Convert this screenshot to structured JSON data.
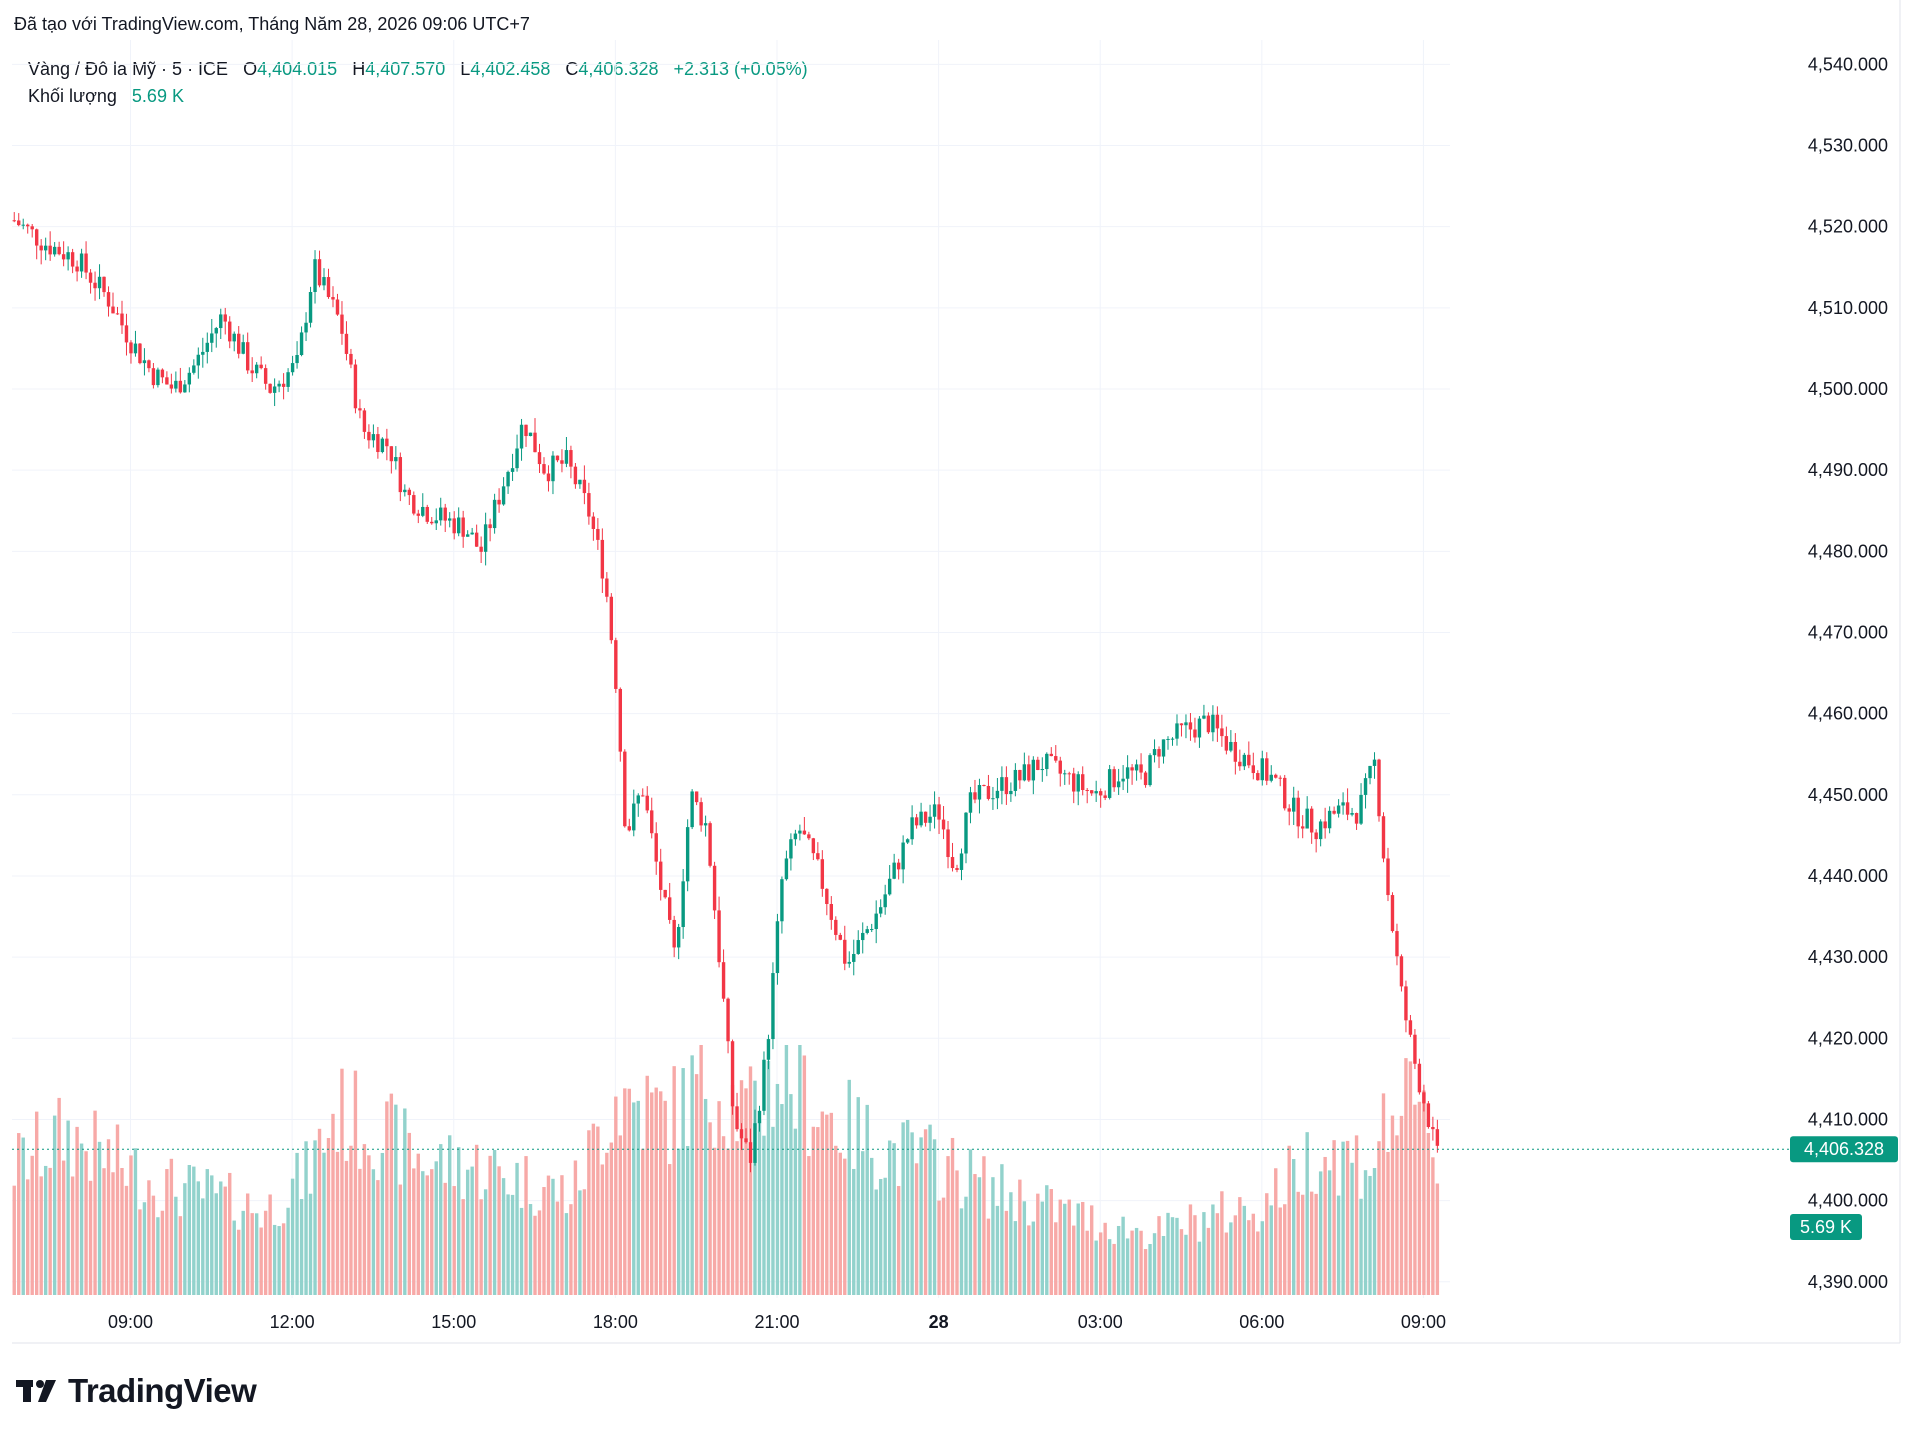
{
  "attribution": "Đã tạo với TradingView.com, Tháng Năm 28, 2026 09:06 UTC+7",
  "legend": {
    "symbol": "Vàng / Đô la Mỹ · 5 · ICE",
    "open_label": "O",
    "open": "4,404.015",
    "high_label": "H",
    "high": "4,407.570",
    "low_label": "L",
    "low": "4,402.458",
    "close_label": "C",
    "close": "4,406.328",
    "change": "+2.313 (+0.05%)",
    "volume_label": "Khối lượng",
    "volume": "5.69 K"
  },
  "brand": "TradingView",
  "colors": {
    "up": "#089981",
    "down": "#f23645",
    "up_vol": "#92d2cc",
    "down_vol": "#f7a9a7",
    "grid": "#f0f3fa",
    "text": "#131722"
  },
  "chart_data": {
    "type": "candlestick",
    "interval": "5 minutes",
    "y_axis": {
      "ylim": [
        4388.0,
        4543.0
      ],
      "ticks": [
        4540.0,
        4530.0,
        4520.0,
        4510.0,
        4500.0,
        4490.0,
        4480.0,
        4470.0,
        4460.0,
        4450.0,
        4440.0,
        4430.0,
        4420.0,
        4410.0,
        4400.0,
        4390.0
      ],
      "tick_labels": [
        "4,540.000",
        "4,530.000",
        "4,520.000",
        "4,510.000",
        "4,500.000",
        "4,490.000",
        "4,480.000",
        "4,470.000",
        "4,460.000",
        "4,450.000",
        "4,440.000",
        "4,430.000",
        "4,420.000",
        "4,410.000",
        "4,400.000",
        "4,390.000"
      ],
      "last_price_label": "4,406.328",
      "last_price": 4406.328,
      "volume_label": "5.69 K"
    },
    "x_axis": {
      "range_hours": [
        6.8,
        33.4
      ],
      "ticks": [
        {
          "hour": 9,
          "label": "09:00",
          "bold": false
        },
        {
          "hour": 12,
          "label": "12:00",
          "bold": false
        },
        {
          "hour": 15,
          "label": "15:00",
          "bold": false
        },
        {
          "hour": 18,
          "label": "18:00",
          "bold": false
        },
        {
          "hour": 21,
          "label": "21:00",
          "bold": false
        },
        {
          "hour": 24,
          "label": "28",
          "bold": true
        },
        {
          "hour": 27,
          "label": "03:00",
          "bold": false
        },
        {
          "hour": 30,
          "label": "06:00",
          "bold": false
        },
        {
          "hour": 33,
          "label": "09:00",
          "bold": false
        }
      ]
    },
    "price_path": [
      [
        6.8,
        4521
      ],
      [
        7.4,
        4518
      ],
      [
        8.0,
        4516
      ],
      [
        8.6,
        4511
      ],
      [
        9.0,
        4506
      ],
      [
        9.4,
        4502
      ],
      [
        9.8,
        4500
      ],
      [
        10.2,
        4503
      ],
      [
        10.7,
        4509
      ],
      [
        11.2,
        4503
      ],
      [
        11.6,
        4500
      ],
      [
        12.1,
        4503
      ],
      [
        12.4,
        4515
      ],
      [
        12.9,
        4508
      ],
      [
        13.3,
        4495
      ],
      [
        13.8,
        4493
      ],
      [
        14.1,
        4487
      ],
      [
        14.5,
        4485
      ],
      [
        14.8,
        4484
      ],
      [
        15.2,
        4483
      ],
      [
        15.5,
        4480
      ],
      [
        15.9,
        4488
      ],
      [
        16.3,
        4496
      ],
      [
        16.7,
        4490
      ],
      [
        17.1,
        4491
      ],
      [
        17.5,
        4485
      ],
      [
        17.8,
        4477
      ],
      [
        18.0,
        4465
      ],
      [
        18.2,
        4445
      ],
      [
        18.5,
        4451
      ],
      [
        18.8,
        4440
      ],
      [
        19.1,
        4430
      ],
      [
        19.4,
        4450
      ],
      [
        19.7,
        4446
      ],
      [
        20.0,
        4425
      ],
      [
        20.2,
        4410
      ],
      [
        20.5,
        4405
      ],
      [
        20.8,
        4418
      ],
      [
        21.1,
        4440
      ],
      [
        21.4,
        4446
      ],
      [
        21.8,
        4440
      ],
      [
        22.3,
        4429
      ],
      [
        22.9,
        4436
      ],
      [
        23.5,
        4446
      ],
      [
        24.0,
        4448
      ],
      [
        24.3,
        4441
      ],
      [
        24.6,
        4449
      ],
      [
        25.1,
        4451
      ],
      [
        25.5,
        4452
      ],
      [
        25.9,
        4454
      ],
      [
        26.4,
        4452
      ],
      [
        26.9,
        4450
      ],
      [
        27.4,
        4453
      ],
      [
        27.8,
        4452
      ],
      [
        28.1,
        4456
      ],
      [
        28.6,
        4458
      ],
      [
        29.0,
        4459
      ],
      [
        29.4,
        4456
      ],
      [
        29.8,
        4454
      ],
      [
        30.2,
        4452
      ],
      [
        30.6,
        4448
      ],
      [
        31.0,
        4446
      ],
      [
        31.4,
        4448
      ],
      [
        31.8,
        4448
      ],
      [
        32.1,
        4454
      ],
      [
        32.3,
        4440
      ],
      [
        32.6,
        4425
      ],
      [
        32.8,
        4418
      ],
      [
        33.1,
        4410
      ],
      [
        33.25,
        4405
      ],
      [
        33.3,
        4406.3
      ]
    ],
    "volume_profile": [
      [
        6.8,
        2.3
      ],
      [
        7.8,
        2.9
      ],
      [
        8.5,
        2.5
      ],
      [
        9.5,
        2.0
      ],
      [
        10.5,
        1.8
      ],
      [
        11.5,
        1.5
      ],
      [
        12.3,
        2.2
      ],
      [
        12.8,
        3.3
      ],
      [
        13.5,
        3.0
      ],
      [
        14.5,
        2.4
      ],
      [
        15.5,
        2.3
      ],
      [
        16.5,
        2.0
      ],
      [
        17.2,
        1.8
      ],
      [
        18.0,
        3.6
      ],
      [
        19.0,
        3.2
      ],
      [
        19.7,
        3.9
      ],
      [
        20.5,
        3.2
      ],
      [
        21.0,
        4.0
      ],
      [
        22.0,
        3.2
      ],
      [
        23.0,
        2.6
      ],
      [
        24.0,
        2.4
      ],
      [
        25.0,
        1.9
      ],
      [
        26.0,
        1.6
      ],
      [
        27.0,
        1.3
      ],
      [
        28.0,
        1.1
      ],
      [
        29.0,
        1.4
      ],
      [
        30.0,
        1.6
      ],
      [
        31.0,
        2.6
      ],
      [
        32.0,
        2.4
      ],
      [
        32.5,
        3.4
      ],
      [
        33.2,
        3.0
      ],
      [
        33.3,
        1.6
      ]
    ]
  }
}
